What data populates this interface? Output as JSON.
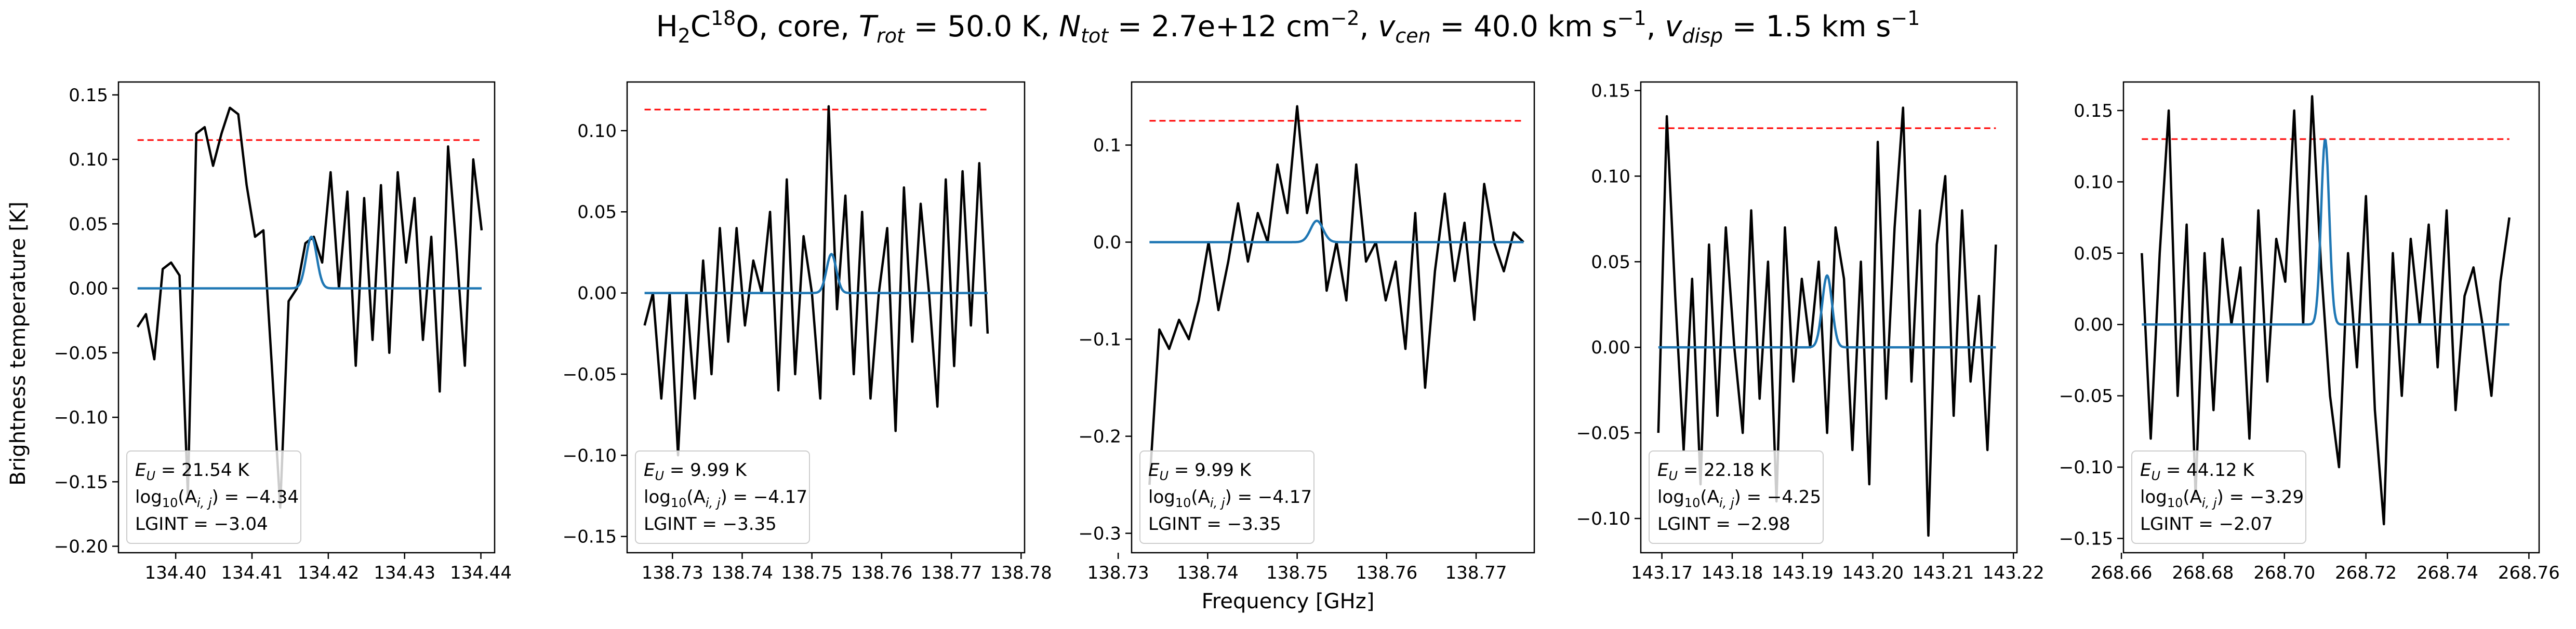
{
  "title": {
    "text": "H₂C¹⁸O, core, T_rot = 50.0 K, N_tot = 2.7e+12 cm⁻², v_cen = 40.0 km s⁻¹, v_disp = 1.5 km s⁻¹",
    "molecule": "H",
    "mol_sub": "2",
    "mol_c": "C",
    "mol_sup": "18",
    "mol_o": "O, core, ",
    "trot_label": "T",
    "trot_sub": "rot",
    "trot_value": " = 50.0 K, ",
    "ntot_label": "N",
    "ntot_sub": "tot",
    "ntot_value": " = 2.7e+12 cm",
    "ntot_exp": "−2",
    "vcen_sep": ", ",
    "vcen_label": "v",
    "vcen_sub": "cen",
    "vcen_value": " = 40.0 km s",
    "vcen_exp": "−1",
    "vdisp_sep": ", ",
    "vdisp_label": "v",
    "vdisp_sub": "disp",
    "vdisp_value": " = 1.5 km s",
    "vdisp_exp": "−1"
  },
  "ylabel": "Brightness temperature [K]",
  "xlabel": "Frequency [GHz]",
  "colors": {
    "observed": "#000000",
    "model": "#1f77b4",
    "threshold": "#ff0000",
    "axes": "#000000"
  },
  "chart_data": [
    {
      "type": "line",
      "xlim": [
        134.3925,
        134.4418
      ],
      "ylim": [
        -0.205,
        0.16
      ],
      "xticks": [
        134.4,
        134.41,
        134.42,
        134.43,
        134.44
      ],
      "xtick_labels": [
        "134.40",
        "134.41",
        "134.42",
        "134.43",
        "134.44"
      ],
      "yticks": [
        -0.2,
        -0.15,
        -0.1,
        -0.05,
        0.0,
        0.05,
        0.1,
        0.15
      ],
      "ytick_labels": [
        "−0.20",
        "−0.15",
        "−0.10",
        "−0.05",
        "0.00",
        "0.05",
        "0.10",
        "0.15"
      ],
      "threshold": 0.115,
      "legend": [
        "E_U = 21.54 K",
        "log10(A_ij) = −4.34",
        "LGINT = −3.04"
      ],
      "legend_parts": {
        "eu_label": "E",
        "eu_sub": "U",
        "eu_value": " = 21.54 K",
        "log_label": "log",
        "log_sub": "10",
        "log_mid": "(A",
        "log_ij": "i, j",
        "log_value": ") = −4.34",
        "lgint": "LGINT = −3.04"
      },
      "observed": {
        "x": [
          134.395,
          134.3961,
          134.3972,
          134.3983,
          134.3994,
          134.4005,
          134.4016,
          134.4027,
          134.4038,
          134.4049,
          134.406,
          134.4071,
          134.4082,
          134.4093,
          134.4104,
          134.4115,
          134.4126,
          134.4137,
          134.4148,
          134.4159,
          134.417,
          134.4181,
          134.4192,
          134.4203,
          134.4214,
          134.4225,
          134.4236,
          134.4247,
          134.4258,
          134.4269,
          134.428,
          134.4291,
          134.4302,
          134.4313,
          134.4324,
          134.4335,
          134.4346,
          134.4357,
          134.4368,
          134.4379,
          134.439,
          134.4401
        ],
        "y": [
          -0.03,
          -0.02,
          -0.055,
          0.015,
          0.02,
          0.01,
          -0.16,
          0.12,
          0.125,
          0.095,
          0.12,
          0.14,
          0.135,
          0.08,
          0.04,
          0.045,
          -0.06,
          -0.17,
          -0.01,
          0.0,
          0.035,
          0.04,
          0.02,
          0.09,
          0.0,
          0.075,
          -0.06,
          0.07,
          -0.04,
          0.08,
          -0.05,
          0.09,
          0.02,
          0.07,
          -0.04,
          0.04,
          -0.08,
          0.11,
          0.03,
          -0.06,
          0.1,
          0.045
        ]
      },
      "model": {
        "x": [
          134.395,
          134.4401
        ],
        "center": 134.4178,
        "width": 0.0007,
        "amplitude": 0.04
      }
    },
    {
      "type": "line",
      "xlim": [
        138.7235,
        138.7805
      ],
      "ylim": [
        -0.16,
        0.13
      ],
      "xticks": [
        138.73,
        138.74,
        138.75,
        138.76,
        138.77,
        138.78
      ],
      "xtick_labels": [
        "138.73",
        "138.74",
        "138.75",
        "138.76",
        "138.77",
        "138.78"
      ],
      "yticks": [
        -0.15,
        -0.1,
        -0.05,
        0.0,
        0.05,
        0.1
      ],
      "ytick_labels": [
        "−0.15",
        "−0.10",
        "−0.05",
        "0.00",
        "0.05",
        "0.10"
      ],
      "threshold": 0.113,
      "legend": [
        "E_U = 9.99 K",
        "log10(A_ij) = −4.17",
        "LGINT = −3.35"
      ],
      "legend_parts": {
        "eu_label": "E",
        "eu_sub": "U",
        "eu_value": " = 9.99 K",
        "log_label": "log",
        "log_sub": "10",
        "log_mid": "(A",
        "log_ij": "i, j",
        "log_value": ") = −4.17",
        "lgint": "LGINT = −3.35"
      },
      "observed": {
        "x": [
          138.726,
          138.7272,
          138.7284,
          138.7296,
          138.7308,
          138.732,
          138.7332,
          138.7344,
          138.7356,
          138.7368,
          138.738,
          138.7392,
          138.7404,
          138.7416,
          138.7428,
          138.744,
          138.7452,
          138.7464,
          138.7476,
          138.7488,
          138.75,
          138.7512,
          138.7524,
          138.7536,
          138.7548,
          138.756,
          138.7572,
          138.7584,
          138.7596,
          138.7608,
          138.762,
          138.7632,
          138.7644,
          138.7656,
          138.7668,
          138.768,
          138.7692,
          138.7704,
          138.7716,
          138.7728,
          138.774,
          138.7752
        ],
        "y": [
          -0.02,
          0.0,
          -0.065,
          0.0,
          -0.1,
          0.0,
          -0.065,
          0.02,
          -0.05,
          0.04,
          -0.03,
          0.04,
          -0.02,
          0.02,
          0.0,
          0.05,
          -0.06,
          0.07,
          -0.05,
          0.035,
          0.0,
          -0.065,
          0.115,
          -0.01,
          0.06,
          -0.05,
          0.05,
          -0.065,
          0.0,
          0.04,
          -0.085,
          0.065,
          -0.03,
          0.055,
          0.0,
          -0.07,
          0.07,
          -0.045,
          0.075,
          -0.02,
          0.08,
          -0.025
        ]
      },
      "model": {
        "x": [
          138.726,
          138.7752
        ],
        "center": 138.7528,
        "width": 0.0007,
        "amplitude": 0.024
      }
    },
    {
      "type": "line",
      "xlim": [
        138.7315,
        138.7765
      ],
      "ylim": [
        -0.32,
        0.165
      ],
      "xticks": [
        138.73,
        138.74,
        138.75,
        138.76,
        138.77
      ],
      "xtick_labels": [
        "138.73",
        "138.74",
        "138.75",
        "138.76",
        "138.77"
      ],
      "yticks": [
        -0.3,
        -0.2,
        -0.1,
        0.0,
        0.1
      ],
      "ytick_labels": [
        "−0.3",
        "−0.2",
        "−0.1",
        "0.0",
        "0.1"
      ],
      "threshold": 0.125,
      "legend": [
        "E_U = 9.99 K",
        "log10(A_ij) = −4.17",
        "LGINT = −3.35"
      ],
      "legend_parts": {
        "eu_label": "E",
        "eu_sub": "U",
        "eu_value": " = 9.99 K",
        "log_label": "log",
        "log_sub": "10",
        "log_mid": "(A",
        "log_ij": "i, j",
        "log_value": ") = −4.17",
        "lgint": "LGINT = −3.35"
      },
      "observed": {
        "x": [
          138.7335,
          138.7346,
          138.7357,
          138.7368,
          138.7379,
          138.739,
          138.7401,
          138.7412,
          138.7423,
          138.7434,
          138.7445,
          138.7456,
          138.7467,
          138.7478,
          138.7489,
          138.75,
          138.7511,
          138.7522,
          138.7533,
          138.7544,
          138.7555,
          138.7566,
          138.7577,
          138.7588,
          138.7599,
          138.761,
          138.7621,
          138.7632,
          138.7643,
          138.7654,
          138.7665,
          138.7676,
          138.7687,
          138.7698,
          138.7709,
          138.772,
          138.7731,
          138.7742,
          138.7753
        ],
        "y": [
          -0.25,
          -0.09,
          -0.11,
          -0.08,
          -0.1,
          -0.06,
          0.0,
          -0.07,
          -0.02,
          0.04,
          -0.02,
          0.03,
          0.0,
          0.08,
          0.03,
          0.14,
          0.03,
          0.08,
          -0.05,
          0.0,
          -0.06,
          0.08,
          -0.02,
          0.0,
          -0.06,
          -0.02,
          -0.11,
          0.03,
          -0.15,
          -0.03,
          0.05,
          -0.04,
          0.02,
          -0.08,
          0.06,
          0.0,
          -0.03,
          0.01,
          0.0
        ]
      },
      "model": {
        "x": [
          138.7335,
          138.7753
        ],
        "center": 138.7522,
        "width": 0.0007,
        "amplitude": 0.022
      }
    },
    {
      "type": "line",
      "xlim": [
        143.167,
        143.2205
      ],
      "ylim": [
        -0.12,
        0.155
      ],
      "xticks": [
        143.17,
        143.18,
        143.19,
        143.2,
        143.21,
        143.22
      ],
      "xtick_labels": [
        "143.17",
        "143.18",
        "143.19",
        "143.20",
        "143.21",
        "143.22"
      ],
      "yticks": [
        -0.1,
        -0.05,
        0.0,
        0.05,
        0.1,
        0.15
      ],
      "ytick_labels": [
        "−0.10",
        "−0.05",
        "0.00",
        "0.05",
        "0.10",
        "0.15"
      ],
      "threshold": 0.128,
      "legend": [
        "E_U = 22.18 K",
        "log10(A_ij) = −4.25",
        "LGINT = −2.98"
      ],
      "legend_parts": {
        "eu_label": "E",
        "eu_sub": "U",
        "eu_value": " = 22.18 K",
        "log_label": "log",
        "log_sub": "10",
        "log_mid": "(A",
        "log_ij": "i, j",
        "log_value": ") = −4.25",
        "lgint": "LGINT = −2.98"
      },
      "observed": {
        "x": [
          143.1695,
          143.1707,
          143.1719,
          143.1731,
          143.1743,
          143.1755,
          143.1767,
          143.1779,
          143.1791,
          143.1803,
          143.1815,
          143.1827,
          143.1839,
          143.1851,
          143.1863,
          143.1875,
          143.1887,
          143.1899,
          143.1911,
          143.1923,
          143.1935,
          143.1947,
          143.1959,
          143.1971,
          143.1983,
          143.1995,
          143.2007,
          143.2019,
          143.2031,
          143.2043,
          143.2055,
          143.2067,
          143.2079,
          143.2091,
          143.2103,
          143.2115,
          143.2127,
          143.2139,
          143.2151,
          143.2163,
          143.2175
        ],
        "y": [
          -0.05,
          0.135,
          0.03,
          -0.06,
          0.04,
          -0.08,
          0.06,
          -0.04,
          0.07,
          0.0,
          -0.05,
          0.08,
          -0.03,
          0.05,
          -0.09,
          0.07,
          -0.02,
          0.04,
          0.0,
          0.05,
          -0.05,
          0.07,
          0.04,
          -0.06,
          0.05,
          -0.08,
          0.12,
          -0.03,
          0.07,
          0.14,
          -0.02,
          0.08,
          -0.11,
          0.06,
          0.1,
          -0.04,
          0.08,
          -0.02,
          0.03,
          -0.06,
          0.06
        ]
      },
      "model": {
        "x": [
          143.1695,
          143.2175
        ],
        "center": 143.1935,
        "width": 0.0007,
        "amplitude": 0.042
      }
    },
    {
      "type": "line",
      "xlim": [
        268.6605,
        268.7625
      ],
      "ylim": [
        -0.16,
        0.17
      ],
      "xticks": [
        268.66,
        268.68,
        268.7,
        268.72,
        268.74,
        268.76
      ],
      "xtick_labels": [
        "268.66",
        "268.68",
        "268.70",
        "268.72",
        "268.74",
        "268.76"
      ],
      "yticks": [
        -0.15,
        -0.1,
        -0.05,
        0.0,
        0.05,
        0.1,
        0.15
      ],
      "ytick_labels": [
        "−0.15",
        "−0.10",
        "−0.05",
        "0.00",
        "0.05",
        "0.10",
        "0.15"
      ],
      "threshold": 0.13,
      "legend": [
        "E_U = 44.12 K",
        "log10(A_ij) = −3.29",
        "LGINT = −2.07"
      ],
      "legend_parts": {
        "eu_label": "E",
        "eu_sub": "U",
        "eu_value": " = 44.12 K",
        "log_label": "log",
        "log_sub": "10",
        "log_mid": "(A",
        "log_ij": "i, j",
        "log_value": ") = −3.29",
        "lgint": "LGINT = −2.07"
      },
      "observed": {
        "x": [
          268.665,
          268.6672,
          268.6694,
          268.6716,
          268.6738,
          268.676,
          268.6782,
          268.6804,
          268.6826,
          268.6848,
          268.687,
          268.6892,
          268.6914,
          268.6936,
          268.6958,
          268.698,
          268.7002,
          268.7024,
          268.7046,
          268.7068,
          268.709,
          268.7112,
          268.7134,
          268.7156,
          268.7178,
          268.72,
          268.7222,
          268.7244,
          268.7266,
          268.7288,
          268.731,
          268.7332,
          268.7354,
          268.7376,
          268.7398,
          268.742,
          268.7442,
          268.7464,
          268.7486,
          268.7508,
          268.753,
          268.7552
        ],
        "y": [
          0.05,
          -0.08,
          0.05,
          0.15,
          -0.05,
          0.07,
          -0.12,
          0.05,
          -0.06,
          0.06,
          0.0,
          0.04,
          -0.08,
          0.08,
          -0.04,
          0.06,
          0.03,
          0.15,
          0.0,
          0.16,
          0.04,
          -0.05,
          -0.1,
          0.05,
          -0.03,
          0.09,
          -0.06,
          -0.14,
          0.05,
          -0.05,
          0.06,
          0.0,
          0.07,
          -0.03,
          0.08,
          -0.06,
          0.02,
          0.04,
          0.0,
          -0.05,
          0.03,
          0.075
        ]
      },
      "model": {
        "x": [
          268.665,
          268.7552
        ],
        "center": 268.71,
        "width": 0.001,
        "amplitude": 0.13
      }
    }
  ]
}
